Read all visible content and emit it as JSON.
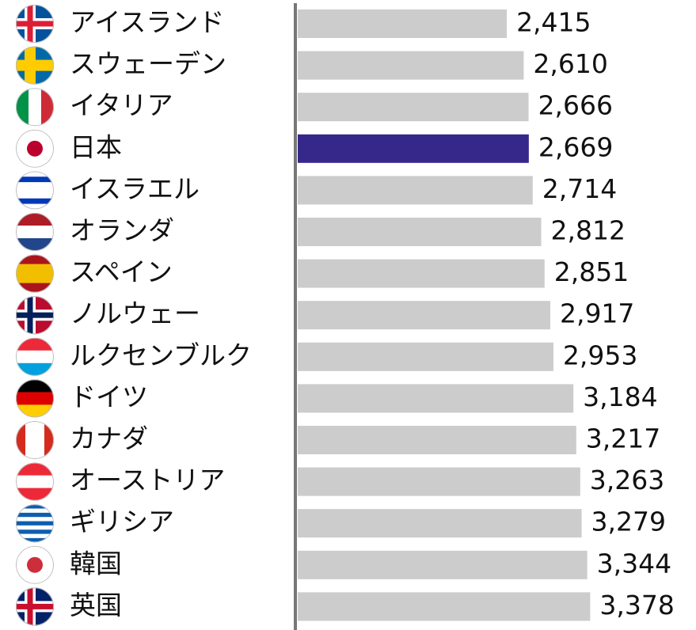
{
  "chart_data": {
    "type": "barh",
    "categories": [
      "アイスランド",
      "スウェーデン",
      "イタリア",
      "日本",
      "イスラエル",
      "オランダ",
      "スペイン",
      "ノルウェー",
      "ルクセンブルク",
      "ドイツ",
      "カナダ",
      "オーストリア",
      "ギリシア",
      "韓国",
      "英国"
    ],
    "values": [
      2415,
      2610,
      2666,
      2669,
      2714,
      2812,
      2851,
      2917,
      2953,
      3184,
      3217,
      3263,
      3279,
      3344,
      3378
    ],
    "value_labels": [
      "2,415",
      "2,610",
      "2,666",
      "2,669",
      "2,714",
      "2,812",
      "2,851",
      "2,917",
      "2,953",
      "3,184",
      "3,217",
      "3,263",
      "3,279",
      "3,344",
      "3,378"
    ],
    "colors": [
      "#cccccc",
      "#cccccc",
      "#cccccc",
      "#35288a",
      "#cccccc",
      "#cccccc",
      "#cccccc",
      "#cccccc",
      "#cccccc",
      "#cccccc",
      "#cccccc",
      "#cccccc",
      "#cccccc",
      "#cccccc",
      "#cccccc"
    ],
    "xlim": [
      0,
      4600
    ]
  }
}
